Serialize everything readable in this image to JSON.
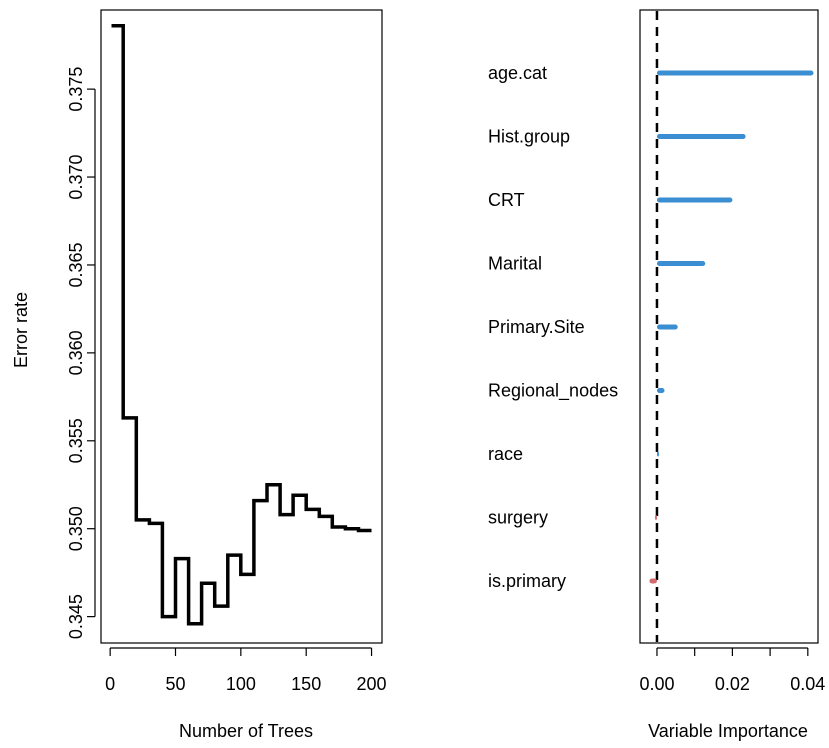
{
  "chart_data": [
    {
      "type": "line",
      "title": "",
      "xlabel": "Number of Trees",
      "ylabel": "Error rate",
      "xlim": [
        -7,
        208
      ],
      "ylim": [
        0.3435,
        0.3795
      ],
      "xticks": [
        0,
        50,
        100,
        150,
        200
      ],
      "xtick_labels": [
        "0",
        "50",
        "100",
        "150",
        "200"
      ],
      "yticks": [
        0.345,
        0.35,
        0.355,
        0.36,
        0.365,
        0.37,
        0.375
      ],
      "ytick_labels": [
        "0.345",
        "0.350",
        "0.355",
        "0.360",
        "0.365",
        "0.370",
        "0.375"
      ],
      "grid": false,
      "legend": "none",
      "line_color": "#000000",
      "series": [
        {
          "x": [
            1,
            10,
            10,
            20,
            20,
            30,
            30,
            40,
            40,
            50,
            50,
            60,
            60,
            70,
            70,
            80,
            80,
            90,
            90,
            100,
            100,
            110,
            110,
            120,
            120,
            130,
            130,
            140,
            140,
            150,
            150,
            160,
            160,
            170,
            170,
            180,
            180,
            190,
            190,
            200
          ],
          "values": [
            0.3786,
            0.3786,
            0.3563,
            0.3563,
            0.3505,
            0.3505,
            0.3503,
            0.3503,
            0.345,
            0.345,
            0.3483,
            0.3483,
            0.3446,
            0.3446,
            0.3469,
            0.3469,
            0.3456,
            0.3456,
            0.3485,
            0.3485,
            0.3474,
            0.3474,
            0.3516,
            0.3516,
            0.3525,
            0.3525,
            0.3508,
            0.3508,
            0.3519,
            0.3519,
            0.3511,
            0.3511,
            0.3507,
            0.3507,
            0.3501,
            0.3501,
            0.35,
            0.35,
            0.3499,
            0.3499
          ]
        }
      ]
    },
    {
      "type": "bar",
      "orientation": "horizontal",
      "title": "",
      "xlabel": "Variable Importance",
      "ylabel": "",
      "xlim": [
        -0.0045,
        0.0427
      ],
      "xticks": [
        0.0,
        0.02,
        0.04
      ],
      "xtick_labels": [
        "0.00",
        "0.02",
        "0.04"
      ],
      "minor_xticks": [
        0.01,
        0.03
      ],
      "reference_line": 0,
      "grid": false,
      "legend": "none",
      "positive_color": "#3a8ed1",
      "negative_color": "#d26a6e",
      "categories": [
        "age.cat",
        "Hist.group",
        "CRT",
        "Marital",
        "Primary.Site",
        "Regional_nodes",
        "race",
        "surgery",
        "is.primary"
      ],
      "values": [
        0.0415,
        0.0235,
        0.02,
        0.0128,
        0.0055,
        0.002,
        0.0003,
        -0.0004,
        -0.002
      ]
    }
  ]
}
